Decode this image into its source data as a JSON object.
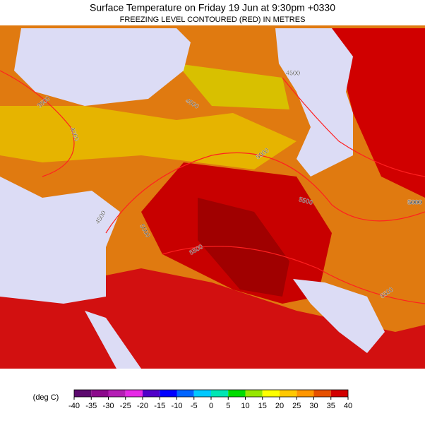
{
  "header": {
    "title": "Surface Temperature on Friday 19 Jun at 9:30pm +0330",
    "subtitle": "FREEZING LEVEL CONTOURED (RED) IN METRES"
  },
  "map": {
    "contour_labels": [
      3500,
      4000,
      4500,
      4500,
      4500,
      5000,
      5000,
      5000,
      5500,
      5500,
      5500,
      5000
    ]
  },
  "legend": {
    "unit": "(deg C)",
    "ticks": [
      -40,
      -35,
      -30,
      -25,
      -20,
      -15,
      -10,
      -5,
      0,
      5,
      10,
      15,
      20,
      25,
      30,
      35,
      40
    ],
    "colors": [
      "#5c0a6e",
      "#8c0a8c",
      "#b41eb4",
      "#e628e6",
      "#5000c8",
      "#0000ff",
      "#0064ff",
      "#00c8ff",
      "#00e6b4",
      "#00dc00",
      "#96e600",
      "#ffff00",
      "#ffc800",
      "#ff9600",
      "#e65000",
      "#d20000"
    ]
  }
}
